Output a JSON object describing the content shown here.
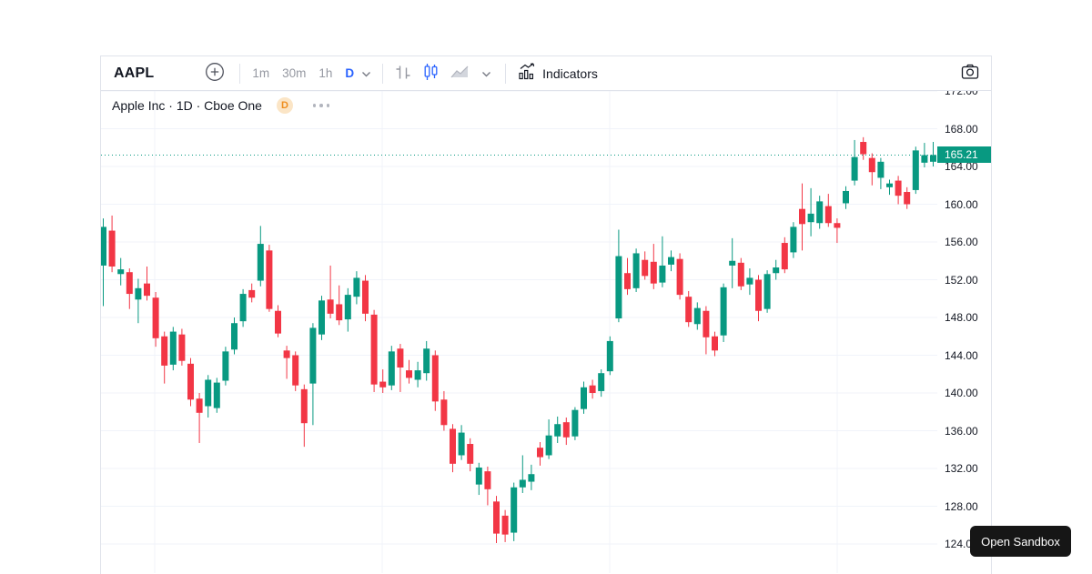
{
  "toolbar": {
    "symbol": "AAPL",
    "timeframes": [
      {
        "label": "1m",
        "active": false
      },
      {
        "label": "30m",
        "active": false
      },
      {
        "label": "1h",
        "active": false
      },
      {
        "label": "D",
        "active": true
      }
    ],
    "indicators_label": "Indicators",
    "icons": [
      "plus-circle-icon",
      "chevron-down-icon",
      "bars-style-icon",
      "candles-style-icon",
      "area-style-icon",
      "indicators-icon",
      "camera-icon"
    ]
  },
  "legend": {
    "title": "Apple Inc · 1D · Cboe One",
    "badge": "D",
    "more_icon": "ellipsis-icon"
  },
  "price_scale": {
    "ticks": [
      "172.00",
      "168.00",
      "164.00",
      "160.00",
      "156.00",
      "152.00",
      "148.00",
      "144.00",
      "140.00",
      "136.00",
      "132.00",
      "128.00",
      "124.00"
    ],
    "last_price_label": "165.21"
  },
  "overlay": {
    "open_sandbox_label": "Open Sandbox"
  },
  "colors": {
    "up": "#089981",
    "down": "#f23645",
    "accent_blue": "#2962ff",
    "grid": "#f0f3fa",
    "border": "#e0e3eb",
    "text": "#131722",
    "muted": "#9598a1",
    "badge_bg": "#fbe5c6",
    "badge_text": "#ee8d1e",
    "price_line": "#089981",
    "price_label_bg": "#089981"
  },
  "chart_data": {
    "type": "candlestick",
    "title": "Apple Inc",
    "symbol": "AAPL",
    "interval": "1D",
    "exchange": "Cboe One",
    "last_close": 165.21,
    "y_axis": {
      "min": 124,
      "max": 172,
      "tick_step": 4
    },
    "grid": true,
    "legend_position": "top-left",
    "candles": [
      [
        153.5,
        158.5,
        149.2,
        157.6
      ],
      [
        157.2,
        158.8,
        152.8,
        153.4
      ],
      [
        152.6,
        154.3,
        151.4,
        153.1
      ],
      [
        152.8,
        153.2,
        148.9,
        150.5
      ],
      [
        149.9,
        152.1,
        147.4,
        151.1
      ],
      [
        151.6,
        153.4,
        149.8,
        150.3
      ],
      [
        150.1,
        150.7,
        144.9,
        145.8
      ],
      [
        146.0,
        146.5,
        141.0,
        142.9
      ],
      [
        143.0,
        147.0,
        142.4,
        146.5
      ],
      [
        146.2,
        146.8,
        142.9,
        143.4
      ],
      [
        143.1,
        143.7,
        138.6,
        139.3
      ],
      [
        139.4,
        140.0,
        134.7,
        137.9
      ],
      [
        138.6,
        141.9,
        137.4,
        141.4
      ],
      [
        138.4,
        141.6,
        137.9,
        141.1
      ],
      [
        141.3,
        144.9,
        140.8,
        144.4
      ],
      [
        144.6,
        148.0,
        144.1,
        147.4
      ],
      [
        147.6,
        151.0,
        147.0,
        150.5
      ],
      [
        150.9,
        151.6,
        149.6,
        150.1
      ],
      [
        151.9,
        157.7,
        151.3,
        155.8
      ],
      [
        155.1,
        155.7,
        148.6,
        148.9
      ],
      [
        148.7,
        149.3,
        145.9,
        146.3
      ],
      [
        144.5,
        145.0,
        141.5,
        143.7
      ],
      [
        144.0,
        144.4,
        140.2,
        140.8
      ],
      [
        140.4,
        140.9,
        134.3,
        136.8
      ],
      [
        141.0,
        147.4,
        136.6,
        146.9
      ],
      [
        146.2,
        150.3,
        145.6,
        149.8
      ],
      [
        149.9,
        153.5,
        147.9,
        148.4
      ],
      [
        149.4,
        151.4,
        147.2,
        147.7
      ],
      [
        147.8,
        151.1,
        146.5,
        150.4
      ],
      [
        150.2,
        152.9,
        149.4,
        152.2
      ],
      [
        151.9,
        152.5,
        147.6,
        148.4
      ],
      [
        148.3,
        148.8,
        140.1,
        140.9
      ],
      [
        141.2,
        142.5,
        140.0,
        140.6
      ],
      [
        140.8,
        145.0,
        140.3,
        144.4
      ],
      [
        144.7,
        145.2,
        140.1,
        142.7
      ],
      [
        142.4,
        143.5,
        141.0,
        141.6
      ],
      [
        141.4,
        143.3,
        140.6,
        142.4
      ],
      [
        142.1,
        145.5,
        141.3,
        144.7
      ],
      [
        144.0,
        144.5,
        138.1,
        139.1
      ],
      [
        139.3,
        140.2,
        136.0,
        136.6
      ],
      [
        136.2,
        136.7,
        131.6,
        132.5
      ],
      [
        133.4,
        136.6,
        132.9,
        135.8
      ],
      [
        134.6,
        135.2,
        131.7,
        132.5
      ],
      [
        130.3,
        132.6,
        129.2,
        132.1
      ],
      [
        131.7,
        132.2,
        128.1,
        129.8
      ],
      [
        128.5,
        129.1,
        124.1,
        125.1
      ],
      [
        127.0,
        127.6,
        124.2,
        125.0
      ],
      [
        125.2,
        130.5,
        124.3,
        130.0
      ],
      [
        130.0,
        133.4,
        129.4,
        130.8
      ],
      [
        130.6,
        132.4,
        129.7,
        131.4
      ],
      [
        134.2,
        134.8,
        132.3,
        133.2
      ],
      [
        133.4,
        137.2,
        133.0,
        135.5
      ],
      [
        135.4,
        137.5,
        134.7,
        136.7
      ],
      [
        136.9,
        137.4,
        134.5,
        135.3
      ],
      [
        135.4,
        138.5,
        135.0,
        138.2
      ],
      [
        138.3,
        141.2,
        137.8,
        140.6
      ],
      [
        140.8,
        141.4,
        139.4,
        140.0
      ],
      [
        140.2,
        142.5,
        139.6,
        142.1
      ],
      [
        142.3,
        146.0,
        141.9,
        145.5
      ],
      [
        147.9,
        157.3,
        147.5,
        154.5
      ],
      [
        152.7,
        154.3,
        150.4,
        151.0
      ],
      [
        151.1,
        155.3,
        150.7,
        154.8
      ],
      [
        154.1,
        155.0,
        152.0,
        152.4
      ],
      [
        153.9,
        155.8,
        151.0,
        151.6
      ],
      [
        151.7,
        156.6,
        151.2,
        153.5
      ],
      [
        153.6,
        155.1,
        152.9,
        154.4
      ],
      [
        154.2,
        154.8,
        149.9,
        150.4
      ],
      [
        150.2,
        150.8,
        147.0,
        147.5
      ],
      [
        147.3,
        149.6,
        146.7,
        149.0
      ],
      [
        148.7,
        149.2,
        144.1,
        145.9
      ],
      [
        146.0,
        146.5,
        143.9,
        144.5
      ],
      [
        146.1,
        151.6,
        145.4,
        151.2
      ],
      [
        153.5,
        156.4,
        151.1,
        154.0
      ],
      [
        153.8,
        154.3,
        150.9,
        151.3
      ],
      [
        151.5,
        153.2,
        150.4,
        152.2
      ],
      [
        152.0,
        152.5,
        147.6,
        148.7
      ],
      [
        148.9,
        153.0,
        148.5,
        152.6
      ],
      [
        152.7,
        154.1,
        152.0,
        153.3
      ],
      [
        155.9,
        156.5,
        152.7,
        153.1
      ],
      [
        154.9,
        158.1,
        154.3,
        157.6
      ],
      [
        159.5,
        162.2,
        155.1,
        157.9
      ],
      [
        158.1,
        161.7,
        156.6,
        159.0
      ],
      [
        158.0,
        160.9,
        157.4,
        160.3
      ],
      [
        159.8,
        161.1,
        157.6,
        158.0
      ],
      [
        158.0,
        158.5,
        155.9,
        157.5
      ],
      [
        160.1,
        161.9,
        159.5,
        161.4
      ],
      [
        162.5,
        166.8,
        162.0,
        165.0
      ],
      [
        166.6,
        167.1,
        164.7,
        165.3
      ],
      [
        164.9,
        165.4,
        162.0,
        163.4
      ],
      [
        162.8,
        164.9,
        161.6,
        164.5
      ],
      [
        161.8,
        162.6,
        161.0,
        162.2
      ],
      [
        162.5,
        163.0,
        160.0,
        160.9
      ],
      [
        161.3,
        161.8,
        159.5,
        160.0
      ],
      [
        161.5,
        166.1,
        161.1,
        165.7
      ],
      [
        164.4,
        166.5,
        163.9,
        165.2
      ],
      [
        164.5,
        166.6,
        164.0,
        165.21
      ]
    ]
  }
}
